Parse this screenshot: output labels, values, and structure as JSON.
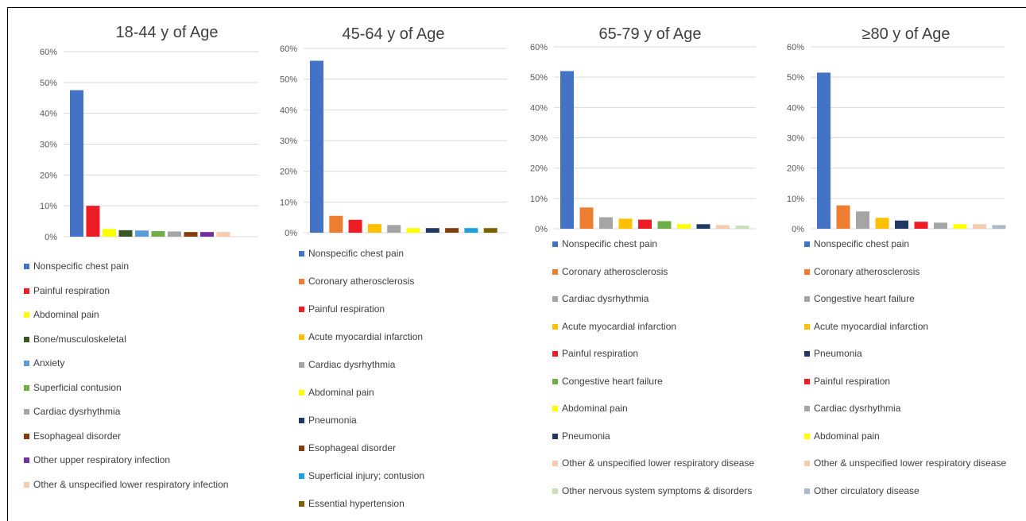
{
  "chart_data": [
    {
      "type": "bar",
      "title": "18-44 y of Age",
      "ylim": [
        0,
        0.6
      ],
      "ytick_labels": [
        "0%",
        "10%",
        "20%",
        "30%",
        "40%",
        "50%",
        "60%"
      ],
      "grid": true,
      "legend_position": "bottom",
      "series": [
        {
          "name": "Nonspecific chest pain",
          "value": 0.475,
          "color": "#4472c4"
        },
        {
          "name": "Painful respiration",
          "value": 0.1,
          "color": "#ee1c25"
        },
        {
          "name": "Abdominal pain",
          "value": 0.025,
          "color": "#ffff00"
        },
        {
          "name": "Bone/musculoskeletal",
          "value": 0.021,
          "color": "#375623"
        },
        {
          "name": "Anxiety",
          "value": 0.02,
          "color": "#5b9bd5"
        },
        {
          "name": "Superficial contusion",
          "value": 0.018,
          "color": "#70ad47"
        },
        {
          "name": "Cardiac dysrhythmia",
          "value": 0.017,
          "color": "#a5a5a5"
        },
        {
          "name": "Esophageal disorder",
          "value": 0.015,
          "color": "#843c0c"
        },
        {
          "name": "Other upper respiratory infection",
          "value": 0.015,
          "color": "#7030a0"
        },
        {
          "name": "Other & unspecified lower respiratory infection",
          "value": 0.015,
          "color": "#f8cbad"
        }
      ]
    },
    {
      "type": "bar",
      "title": "45-64 y of Age",
      "ylim": [
        0,
        0.6
      ],
      "ytick_labels": [
        "0%",
        "10%",
        "20%",
        "30%",
        "40%",
        "50%",
        "60%"
      ],
      "grid": true,
      "legend_position": "bottom",
      "series": [
        {
          "name": "Nonspecific chest pain",
          "value": 0.56,
          "color": "#4472c4"
        },
        {
          "name": "Coronary atherosclerosis",
          "value": 0.055,
          "color": "#ed7d31"
        },
        {
          "name": "Painful respiration",
          "value": 0.042,
          "color": "#ee1c25"
        },
        {
          "name": "Acute myocardial infarction",
          "value": 0.028,
          "color": "#ffc000"
        },
        {
          "name": "Cardiac dysrhythmia",
          "value": 0.025,
          "color": "#a5a5a5"
        },
        {
          "name": "Abdominal pain",
          "value": 0.015,
          "color": "#ffff00"
        },
        {
          "name": "Pneumonia",
          "value": 0.015,
          "color": "#203864"
        },
        {
          "name": "Esophageal disorder",
          "value": 0.015,
          "color": "#843c0c"
        },
        {
          "name": "Superficial injury; contusion",
          "value": 0.015,
          "color": "#1ba1e2"
        },
        {
          "name": "Essential hypertension",
          "value": 0.015,
          "color": "#7f6000"
        }
      ]
    },
    {
      "type": "bar",
      "title": "65-79 y of Age",
      "ylim": [
        0,
        0.6
      ],
      "ytick_labels": [
        "0%",
        "10%",
        "20%",
        "30%",
        "40%",
        "50%",
        "60%"
      ],
      "grid": true,
      "legend_position": "bottom",
      "series": [
        {
          "name": "Nonspecific chest pain",
          "value": 0.52,
          "color": "#4472c4"
        },
        {
          "name": "Coronary atherosclerosis",
          "value": 0.07,
          "color": "#ed7d31"
        },
        {
          "name": "Cardiac dysrhythmia",
          "value": 0.038,
          "color": "#a5a5a5"
        },
        {
          "name": "Acute myocardial infarction",
          "value": 0.033,
          "color": "#ffc000"
        },
        {
          "name": "Painful respiration",
          "value": 0.03,
          "color": "#ee1c25"
        },
        {
          "name": "Congestive heart failure",
          "value": 0.025,
          "color": "#70ad47"
        },
        {
          "name": "Abdominal pain",
          "value": 0.015,
          "color": "#ffff00"
        },
        {
          "name": "Pneumonia",
          "value": 0.015,
          "color": "#203864"
        },
        {
          "name": "Other & unspecified lower respiratory disease",
          "value": 0.012,
          "color": "#f8cbad"
        },
        {
          "name": "Other nervous system symptoms & disorders",
          "value": 0.01,
          "color": "#c5e0b4"
        }
      ]
    },
    {
      "type": "bar",
      "title": "≥80 y of Age",
      "ylim": [
        0,
        0.6
      ],
      "ytick_labels": [
        "0%",
        "10%",
        "20%",
        "30%",
        "40%",
        "50%",
        "60%"
      ],
      "grid": true,
      "legend_position": "bottom",
      "series": [
        {
          "name": "Nonspecific chest pain",
          "value": 0.515,
          "color": "#4472c4"
        },
        {
          "name": "Coronary atherosclerosis",
          "value": 0.077,
          "color": "#ed7d31"
        },
        {
          "name": "Congestive heart failure",
          "value": 0.057,
          "color": "#a5a5a5"
        },
        {
          "name": "Acute myocardial infarction",
          "value": 0.036,
          "color": "#ffc000"
        },
        {
          "name": "Pneumonia",
          "value": 0.027,
          "color": "#203864"
        },
        {
          "name": "Painful respiration",
          "value": 0.023,
          "color": "#ee1c25"
        },
        {
          "name": "Cardiac dysrhythmia",
          "value": 0.02,
          "color": "#a5a5a5"
        },
        {
          "name": "Abdominal pain",
          "value": 0.015,
          "color": "#ffff00"
        },
        {
          "name": "Other & unspecified lower respiratory disease",
          "value": 0.015,
          "color": "#f8cbad"
        },
        {
          "name": "Other circulatory disease",
          "value": 0.012,
          "color": "#adb9ca"
        }
      ]
    }
  ]
}
